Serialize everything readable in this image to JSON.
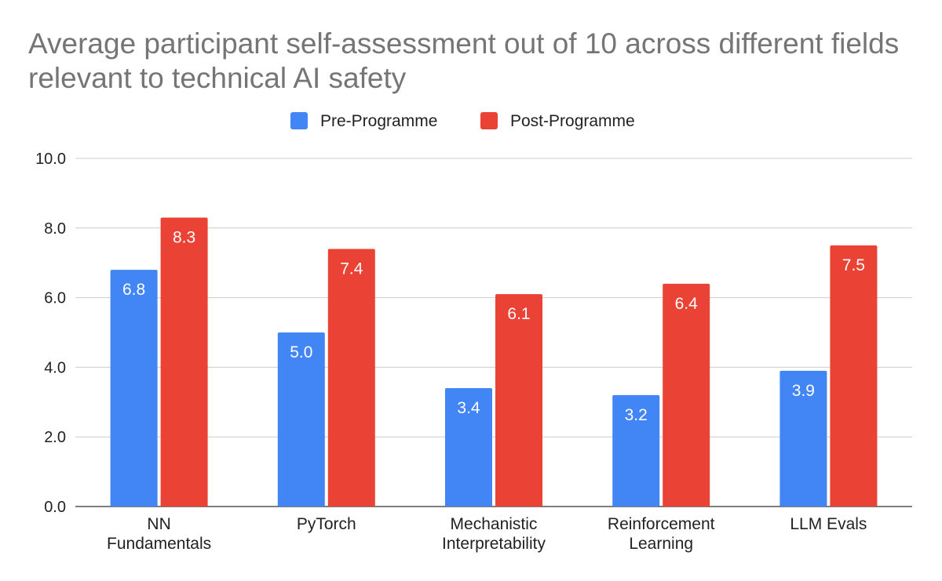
{
  "chart_data": {
    "type": "bar",
    "title": "Average participant self-assessment out of 10 across different fields relevant to technical AI safety",
    "xlabel": "",
    "ylabel": "",
    "categories": [
      [
        "NN",
        "Fundamentals"
      ],
      [
        "PyTorch"
      ],
      [
        "Mechanistic",
        "Interpretability"
      ],
      [
        "Reinforcement",
        "Learning"
      ],
      [
        "LLM Evals"
      ]
    ],
    "series": [
      {
        "name": "Pre-Programme",
        "color": "#4285F4",
        "values": [
          6.8,
          5.0,
          3.4,
          3.2,
          3.9
        ],
        "labels": [
          "6.8",
          "5.0",
          "3.4",
          "3.2",
          "3.9"
        ]
      },
      {
        "name": "Post-Programme",
        "color": "#EA4335",
        "values": [
          8.3,
          7.4,
          6.1,
          6.4,
          7.5
        ],
        "labels": [
          "8.3",
          "7.4",
          "6.1",
          "6.4",
          "7.5"
        ]
      }
    ],
    "ylim": [
      0,
      10
    ],
    "yticks": [
      "0.0",
      "2.0",
      "4.0",
      "6.0",
      "8.0",
      "10.0"
    ],
    "grid": true,
    "legend_position": "top-center"
  }
}
